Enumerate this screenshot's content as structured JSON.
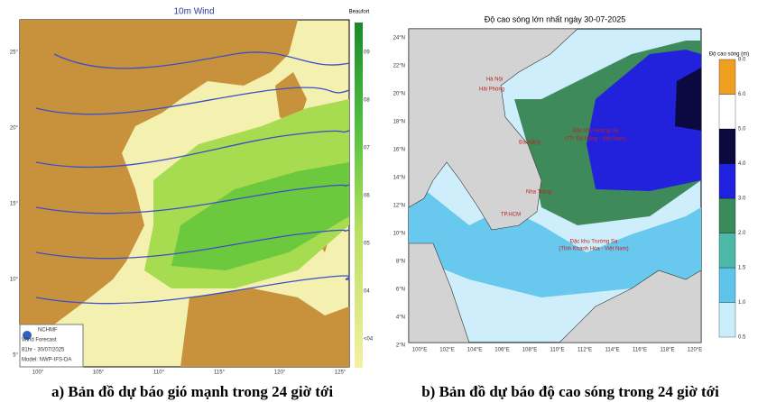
{
  "wind_map": {
    "title": "10m Wind",
    "scale_title": "Beaufort",
    "scale_labels": [
      "09",
      "08",
      "07",
      "06",
      "05",
      "04",
      "<04"
    ],
    "lat_labels": [
      "25°",
      "20°",
      "15°",
      "10°",
      "5°"
    ],
    "lon_labels": [
      "100°",
      "105°",
      "110°",
      "115°",
      "120°",
      "125°"
    ],
    "info": [
      "NCHMF",
      "Wind Forecast",
      "81hr - 30/07/2025",
      "Model: NWP-IFS-DA"
    ],
    "caption": "a) Bản đồ dự báo gió mạnh trong 24 giờ tới"
  },
  "wave_map": {
    "title": "Độ cao sóng lớn nhất ngày 30-07-2025",
    "scale_title": "Độ cao sóng (m)",
    "scale_labels": [
      "0.5",
      "1.0",
      "1.5",
      "2.0",
      "3.0",
      "4.0",
      "5.0",
      "6.0",
      "8.0"
    ],
    "lat_labels": [
      "24°N",
      "22°N",
      "20°N",
      "18°N",
      "16°N",
      "14°N",
      "12°N",
      "10°N",
      "8°N",
      "6°N",
      "4°N",
      "2°N"
    ],
    "lon_labels": [
      "100°E",
      "102°E",
      "104°E",
      "106°E",
      "108°E",
      "110°E",
      "112°E",
      "114°E",
      "116°E",
      "118°E",
      "120°E"
    ],
    "places": [
      "Hà Nội",
      "Hải Phòng",
      "Đà Nẵng",
      "Nha Trang",
      "TP.HCM",
      "Đặc khu Hoàng Sa",
      "(TP. Đà Nẵng - Việt Nam)",
      "Đặc khu Trường Sa",
      "(Tỉnh Khánh Hòa - Việt Nam)"
    ],
    "caption": "b) Bản đồ dự báo độ cao sóng trong 24 giờ tới"
  }
}
